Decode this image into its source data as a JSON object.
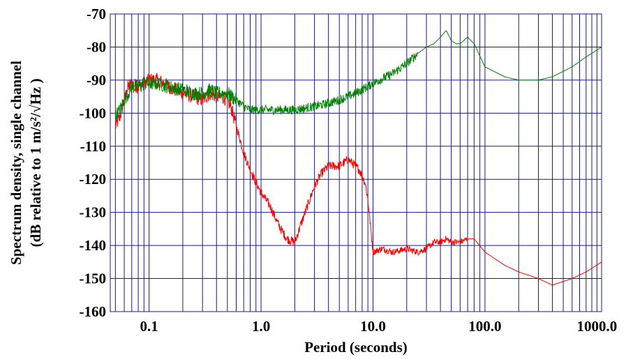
{
  "chart_data": {
    "type": "line",
    "xscale": "log",
    "xlim": [
      0.045,
      1100
    ],
    "ylim": [
      -160,
      -70
    ],
    "xlabel": "Period (seconds)",
    "ylabel_line1": "Spectrum density, single channel",
    "ylabel_line2": "(dB relative to 1 m/s²/√Hz )",
    "grid": true,
    "grid_color": "#1a1a8c",
    "legend": "none",
    "x_ticks": [
      {
        "value": 0.1,
        "label": "0.1"
      },
      {
        "value": 1,
        "label": "1.0"
      },
      {
        "value": 10,
        "label": "10.0"
      },
      {
        "value": 100,
        "label": "100.0"
      },
      {
        "value": 1000,
        "label": "1000.0"
      }
    ],
    "y_ticks": [
      {
        "value": -70,
        "label": "-70"
      },
      {
        "value": -80,
        "label": "-80"
      },
      {
        "value": -90,
        "label": "-90"
      },
      {
        "value": -100,
        "label": "-100"
      },
      {
        "value": -110,
        "label": "-110"
      },
      {
        "value": -120,
        "label": "-120"
      },
      {
        "value": -130,
        "label": "-130"
      },
      {
        "value": -140,
        "label": "-140"
      },
      {
        "value": -150,
        "label": "-150"
      },
      {
        "value": -160,
        "label": "-160"
      }
    ],
    "series": [
      {
        "color": "#ff0000",
        "x": [
          0.05,
          0.055,
          0.06,
          0.065,
          0.07,
          0.08,
          0.09,
          0.1,
          0.12,
          0.15,
          0.2,
          0.25,
          0.3,
          0.35,
          0.4,
          0.45,
          0.5,
          0.55,
          0.6,
          0.65,
          0.7,
          0.8,
          0.9,
          1.0,
          1.2,
          1.4,
          1.5,
          1.7,
          2.0,
          2.3,
          2.6,
          3.0,
          3.5,
          4.0,
          5.0,
          6.0,
          6.5,
          7.0,
          7.5,
          8.0,
          8.5,
          9.0,
          10.0,
          12.0,
          15.0,
          20.0,
          25.0,
          30.0,
          35.0,
          40.0,
          45.0,
          50.0,
          60.0,
          70.0,
          80.0,
          100.0,
          150.0,
          200.0,
          300.0,
          400.0,
          600.0,
          800.0,
          1100.0
        ],
        "y": [
          -104,
          -101,
          -96,
          -92,
          -91,
          -92,
          -91,
          -90,
          -90,
          -92,
          -94,
          -95,
          -96,
          -94,
          -95,
          -95,
          -96,
          -99,
          -104,
          -108,
          -112,
          -117,
          -121,
          -124,
          -128,
          -133,
          -135,
          -138,
          -139,
          -133,
          -128,
          -122,
          -118,
          -116,
          -116,
          -114,
          -115,
          -116,
          -117,
          -119,
          -121,
          -126,
          -142,
          -141,
          -142,
          -141,
          -142,
          -141,
          -139,
          -139,
          -138,
          -139,
          -139,
          -138,
          -138,
          -142,
          -146,
          -148,
          -150,
          -152,
          -150,
          -148,
          -145
        ]
      },
      {
        "color": "#008000",
        "x": [
          0.05,
          0.055,
          0.06,
          0.065,
          0.07,
          0.08,
          0.09,
          0.1,
          0.12,
          0.15,
          0.2,
          0.25,
          0.3,
          0.35,
          0.4,
          0.45,
          0.5,
          0.6,
          0.7,
          0.8,
          1.0,
          1.5,
          2.0,
          3.0,
          4.0,
          5.0,
          7.0,
          10.0,
          15.0,
          20.0,
          25.0,
          30.0,
          35.0,
          40.0,
          45.0,
          50.0,
          55.0,
          60.0,
          70.0,
          80.0,
          100.0,
          150.0,
          200.0,
          300.0,
          400.0,
          600.0,
          800.0,
          1100.0
        ],
        "y": [
          -101,
          -99,
          -96,
          -94,
          -92,
          -92,
          -91,
          -91,
          -91,
          -92,
          -93,
          -94,
          -94,
          -93,
          -94,
          -94,
          -94,
          -96,
          -98,
          -99,
          -99,
          -99,
          -99,
          -98,
          -97,
          -96,
          -94,
          -91,
          -88,
          -85,
          -82,
          -80,
          -79,
          -77,
          -75,
          -78,
          -79,
          -79,
          -77,
          -79,
          -86,
          -89,
          -90,
          -90,
          -89,
          -86,
          -83,
          -80
        ]
      }
    ]
  }
}
